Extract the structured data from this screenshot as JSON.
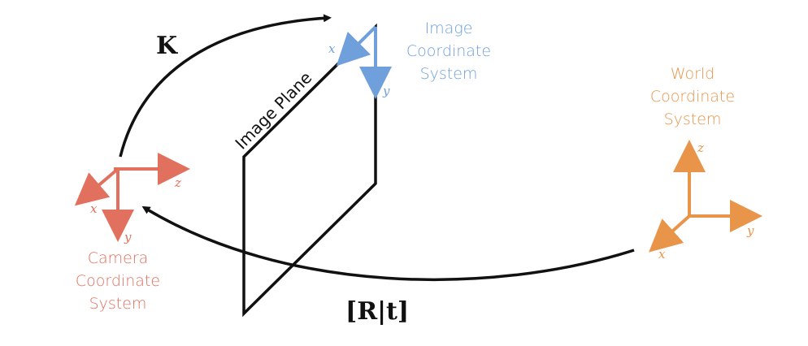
{
  "colors": {
    "camera": "#e2705e",
    "image": "#6fa0dc",
    "world": "#e8954a",
    "black": "#111111"
  },
  "labels": {
    "image_system": [
      "Image",
      "Coordinate",
      "System"
    ],
    "world_system": [
      "World",
      "Coordinate",
      "System"
    ],
    "camera_system": [
      "Camera",
      "Coordinate",
      "System"
    ],
    "image_plane": "Image Plane",
    "intrinsic": "K",
    "extrinsic": "[R|t]"
  },
  "axes": {
    "camera": {
      "x": "x",
      "y": "y",
      "z": "z"
    },
    "image": {
      "x": "x",
      "y": "y"
    },
    "world": {
      "x": "x",
      "y": "y",
      "z": "z"
    }
  }
}
